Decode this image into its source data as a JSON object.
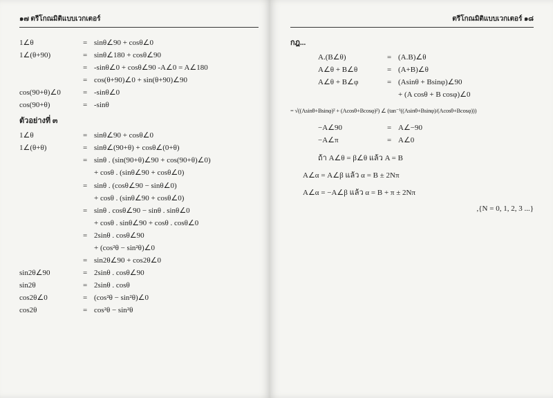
{
  "left": {
    "header": "๑๗ ตรีโกณมิติแบบเวกเตอร์",
    "lines": [
      {
        "lhs": "1∠θ",
        "eq": "=",
        "rhs": "sinθ∠90 + cosθ∠0"
      },
      {
        "lhs": "1∠(θ+90)",
        "eq": "=",
        "rhs": "sinθ∠180 + cosθ∠90"
      },
      {
        "lhs": "",
        "eq": "=",
        "rhs": "-sinθ∠0 + cosθ∠90        -A∠0 = A∠180"
      },
      {
        "lhs": "",
        "eq": "=",
        "rhs": "cos(θ+90)∠0 + sin(θ+90)∠90"
      },
      {
        "lhs": "cos(90+θ)∠0",
        "eq": "=",
        "rhs": "-sinθ∠0"
      },
      {
        "lhs": "cos(90+θ)",
        "eq": "=",
        "rhs": "-sinθ"
      }
    ],
    "section2": "ตัวอย่างที่ ๓",
    "lines2": [
      {
        "lhs": "1∠θ",
        "eq": "=",
        "rhs": "sinθ∠90 + cosθ∠0"
      },
      {
        "lhs": "1∠(θ+θ)",
        "eq": "=",
        "rhs": "sinθ∠(90+θ) + cosθ∠(0+θ)"
      },
      {
        "lhs": "",
        "eq": "=",
        "rhs": "sinθ . (sin(90+θ)∠90 + cos(90+θ)∠0)"
      },
      {
        "lhs": "",
        "eq": "",
        "rhs": "+ cosθ . (sinθ∠90 + cosθ∠0)"
      },
      {
        "lhs": "",
        "eq": "=",
        "rhs": "sinθ . (cosθ∠90 − sinθ∠0)"
      },
      {
        "lhs": "",
        "eq": "",
        "rhs": "+ cosθ . (sinθ∠90 + cosθ∠0)"
      },
      {
        "lhs": "",
        "eq": "=",
        "rhs": "sinθ . cosθ∠90 − sinθ . sinθ∠0"
      },
      {
        "lhs": "",
        "eq": "",
        "rhs": "+ cosθ . sinθ∠90 + cosθ . cosθ∠0"
      },
      {
        "lhs": "",
        "eq": "=",
        "rhs": "2sinθ . cosθ∠90"
      },
      {
        "lhs": "",
        "eq": "",
        "rhs": "+ (cos²θ − sin²θ)∠0"
      },
      {
        "lhs": "",
        "eq": "=",
        "rhs": "sin2θ∠90 + cos2θ∠0"
      },
      {
        "lhs": "sin2θ∠90",
        "eq": "=",
        "rhs": "2sinθ . cosθ∠90"
      },
      {
        "lhs": "sin2θ",
        "eq": "=",
        "rhs": "2sinθ . cosθ"
      },
      {
        "lhs": "cos2θ∠0",
        "eq": "=",
        "rhs": "(cos²θ − sin²θ)∠0"
      },
      {
        "lhs": "cos2θ",
        "eq": "=",
        "rhs": "cos²θ − sin²θ"
      }
    ]
  },
  "right": {
    "header": "ตรีโกณมิติแบบเวกเตอร์ ๑๘",
    "title": "กฎ...",
    "lines": [
      {
        "lhs": "A.(B∠θ)",
        "eq": "=",
        "rhs": "(A.B)∠θ"
      },
      {
        "lhs": "A∠θ + B∠θ",
        "eq": "=",
        "rhs": "(A+B)∠θ"
      },
      {
        "lhs": "A∠θ + B∠φ",
        "eq": "=",
        "rhs": "(Asinθ + Bsinφ)∠90"
      },
      {
        "lhs": "",
        "eq": "",
        "rhs": "+ (A cosθ + B cosφ)∠0"
      }
    ],
    "radical": "= √((Asinθ+Bsinφ)² + (Acosθ+Bcosφ)²) ∠ (tan⁻¹((Asinθ+Bsinφ)/(Acosθ+Bcosφ)))",
    "lines2": [
      {
        "lhs": "−A∠90",
        "eq": "=",
        "rhs": "A∠−90"
      },
      {
        "lhs": "−A∠π",
        "eq": "=",
        "rhs": "A∠0"
      }
    ],
    "cond1_pre": "ถ้า   A∠θ = β∠θ   แล้ว   A = B",
    "cond2": "A∠α = A∠β   แล้ว   α = B ± 2Nπ",
    "cond3": "A∠α = −A∠β   แล้ว   α = B + π ± 2Nπ",
    "tail": ",{N = 0, 1, 2, 3 ...}"
  }
}
